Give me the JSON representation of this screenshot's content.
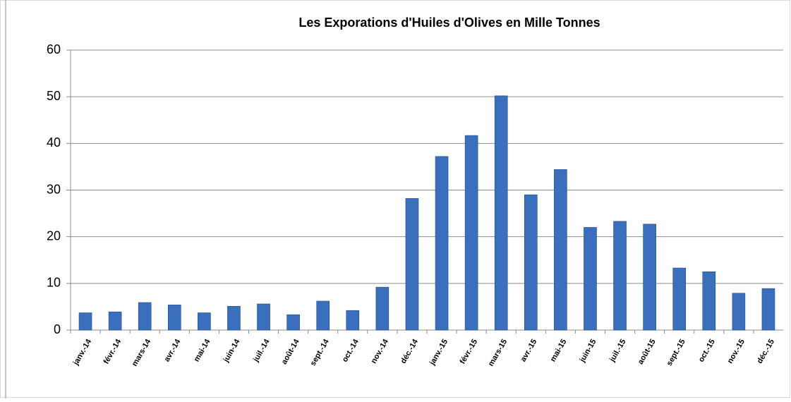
{
  "chart_data": {
    "type": "bar",
    "title": "Les Exporations d'Huiles d'Olives en Mille Tonnes",
    "categories": [
      "janv.-14",
      "févr.-14",
      "mars-14",
      "avr.-14",
      "mai-14",
      "juin-14",
      "juil.-14",
      "août-14",
      "sept.-14",
      "oct.-14",
      "nov.-14",
      "déc.-14",
      "janv.-15",
      "févr.-15",
      "mars-15",
      "avr.-15",
      "mai-15",
      "juin-15",
      "juil.-15",
      "août-15",
      "sept.-15",
      "oct.-15",
      "nov.-15",
      "déc.-15"
    ],
    "values": [
      3.7,
      3.9,
      5.9,
      5.4,
      3.7,
      5.1,
      5.6,
      3.3,
      6.2,
      4.2,
      9.2,
      28.2,
      37.2,
      41.7,
      50.2,
      29,
      34.4,
      22,
      23.3,
      22.7,
      13.3,
      12.5,
      7.9,
      8.9
    ],
    "color": "#3a6fbe",
    "ylim": [
      0,
      60
    ],
    "yticks": [
      0,
      10,
      20,
      30,
      40,
      50,
      60
    ],
    "grid": true
  }
}
